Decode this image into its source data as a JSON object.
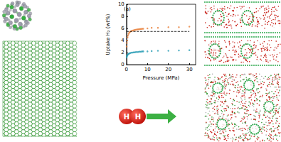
{
  "chart_data": {
    "type": "scatter",
    "title": "(a)",
    "x_label": "Pressure (MPa)",
    "y_label": "Uptake H₂ (wt%)",
    "xlim": [
      0,
      33
    ],
    "xticks": [
      0,
      10,
      20,
      30
    ],
    "ylim": [
      0,
      10
    ],
    "yticks": [
      0,
      2,
      4,
      6,
      8,
      10
    ],
    "grid": false,
    "series": [
      {
        "type": "scatter",
        "marker": "circle",
        "color": "#e8803a",
        "x": [
          0.1,
          0.2,
          0.3,
          0.5,
          0.7,
          1,
          1.3,
          1.6,
          2,
          2.5,
          3,
          3.5,
          4,
          4.5,
          5,
          5.5,
          6,
          6.5,
          7,
          7.5,
          8,
          10,
          12,
          15,
          20,
          25,
          30
        ],
        "values": [
          3.0,
          3.6,
          4.0,
          4.5,
          4.8,
          5.1,
          5.3,
          5.4,
          5.5,
          5.6,
          5.65,
          5.7,
          5.75,
          5.8,
          5.82,
          5.85,
          5.87,
          5.9,
          5.92,
          5.94,
          5.95,
          6.0,
          6.1,
          6.1,
          6.2,
          6.2,
          6.3
        ]
      },
      {
        "type": "scatter",
        "marker": "circle",
        "color": "#2a9db5",
        "x": [
          0.1,
          0.2,
          0.3,
          0.5,
          0.7,
          1,
          1.3,
          1.6,
          2,
          2.5,
          3,
          3.5,
          4,
          4.5,
          5,
          5.5,
          6,
          6.5,
          7,
          7.5,
          8,
          10,
          12,
          15,
          20,
          25,
          30
        ],
        "values": [
          1.2,
          1.4,
          1.5,
          1.6,
          1.7,
          1.8,
          1.85,
          1.9,
          1.95,
          2.0,
          2.0,
          2.05,
          2.05,
          2.1,
          2.1,
          2.1,
          2.15,
          2.15,
          2.15,
          2.2,
          2.2,
          2.2,
          2.25,
          2.3,
          2.3,
          2.35,
          2.4
        ]
      },
      {
        "type": "line",
        "line_style": "dashed",
        "color": "#000000",
        "x": [
          0,
          30
        ],
        "values": [
          5.5,
          5.5
        ]
      }
    ]
  },
  "molecule": {
    "atoms": [
      "H",
      "H"
    ]
  }
}
